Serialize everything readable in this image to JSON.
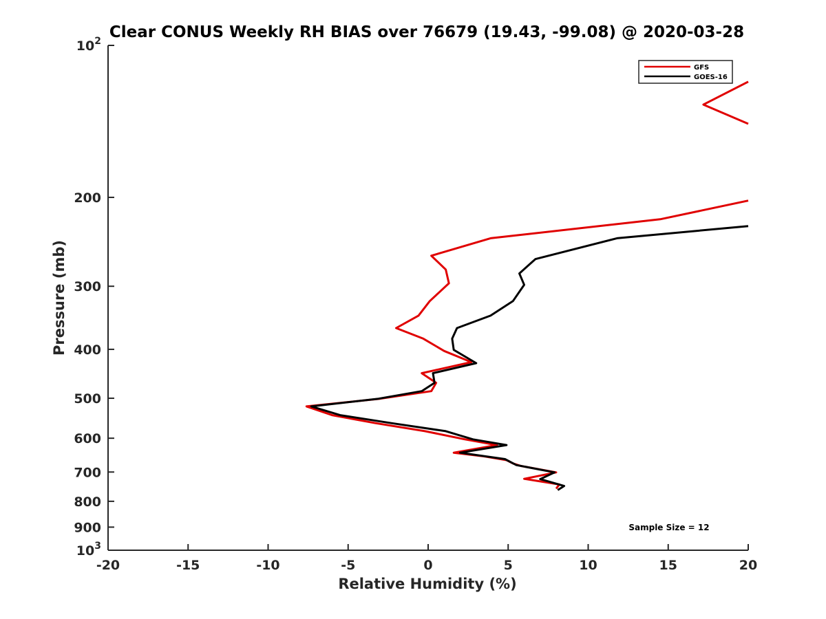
{
  "chart_data": {
    "type": "line",
    "title": "Clear CONUS Weekly RH BIAS over 76679 (19.43, -99.08) @ 2020-03-28",
    "xlabel": "Relative Humidity (%)",
    "ylabel": "Pressure (mb)",
    "xlim": [
      -20,
      20
    ],
    "ylim": [
      100,
      1000
    ],
    "y_scale": "log",
    "y_reversed": true,
    "xticks": [
      -20,
      -15,
      -10,
      -5,
      0,
      5,
      10,
      15,
      20
    ],
    "yticks": [
      {
        "value": 100,
        "base": "10",
        "exp": "2"
      },
      {
        "value": 200,
        "label": "200"
      },
      {
        "value": 300,
        "label": "300"
      },
      {
        "value": 400,
        "label": "400"
      },
      {
        "value": 500,
        "label": "500"
      },
      {
        "value": 600,
        "label": "600"
      },
      {
        "value": 700,
        "label": "700"
      },
      {
        "value": 800,
        "label": "800"
      },
      {
        "value": 900,
        "label": "900"
      },
      {
        "value": 1000,
        "base": "10",
        "exp": "3"
      }
    ],
    "grid": false,
    "legend_position": "top-right",
    "annotation": "Sample Size = 12",
    "series": [
      {
        "name": "GFS",
        "color": "#e00000",
        "points": [
          [
            20.0,
            118
          ],
          [
            17.2,
            131
          ],
          [
            20.0,
            143
          ],
          [
            20.0,
            203
          ],
          [
            14.5,
            221
          ],
          [
            3.9,
            241
          ],
          [
            0.2,
            261
          ],
          [
            1.1,
            278
          ],
          [
            1.3,
            296
          ],
          [
            0.1,
            321
          ],
          [
            -0.6,
            343
          ],
          [
            -2.0,
            363
          ],
          [
            -0.3,
            381
          ],
          [
            1.0,
            403
          ],
          [
            2.7,
            424
          ],
          [
            -0.4,
            446
          ],
          [
            0.5,
            466
          ],
          [
            0.2,
            484
          ],
          [
            -3.0,
            501
          ],
          [
            -7.6,
            519
          ],
          [
            -6.0,
            540
          ],
          [
            -3.3,
            560
          ],
          [
            -0.2,
            581
          ],
          [
            2.3,
            603
          ],
          [
            4.3,
            619
          ],
          [
            1.6,
            641
          ],
          [
            3.4,
            651
          ],
          [
            4.9,
            663
          ],
          [
            5.3,
            673
          ],
          [
            5.8,
            681
          ],
          [
            8.0,
            701
          ],
          [
            6.0,
            722
          ],
          [
            8.2,
            741
          ],
          [
            8.0,
            755
          ]
        ]
      },
      {
        "name": "GOES-16",
        "color": "#000000",
        "points": [
          [
            20.0,
            228
          ],
          [
            11.8,
            241
          ],
          [
            6.7,
            265
          ],
          [
            5.7,
            283
          ],
          [
            6.0,
            298
          ],
          [
            5.3,
            321
          ],
          [
            3.9,
            343
          ],
          [
            1.8,
            363
          ],
          [
            1.5,
            381
          ],
          [
            1.6,
            401
          ],
          [
            3.0,
            426
          ],
          [
            0.3,
            446
          ],
          [
            0.4,
            466
          ],
          [
            -0.4,
            484
          ],
          [
            -3.1,
            501
          ],
          [
            -7.3,
            519
          ],
          [
            -5.5,
            540
          ],
          [
            -2.3,
            560
          ],
          [
            1.1,
            581
          ],
          [
            2.8,
            603
          ],
          [
            4.9,
            619
          ],
          [
            2.0,
            641
          ],
          [
            4.8,
            660
          ],
          [
            5.5,
            678
          ],
          [
            7.9,
            701
          ],
          [
            7.0,
            723
          ],
          [
            8.5,
            746
          ],
          [
            8.1,
            760
          ]
        ]
      }
    ]
  }
}
